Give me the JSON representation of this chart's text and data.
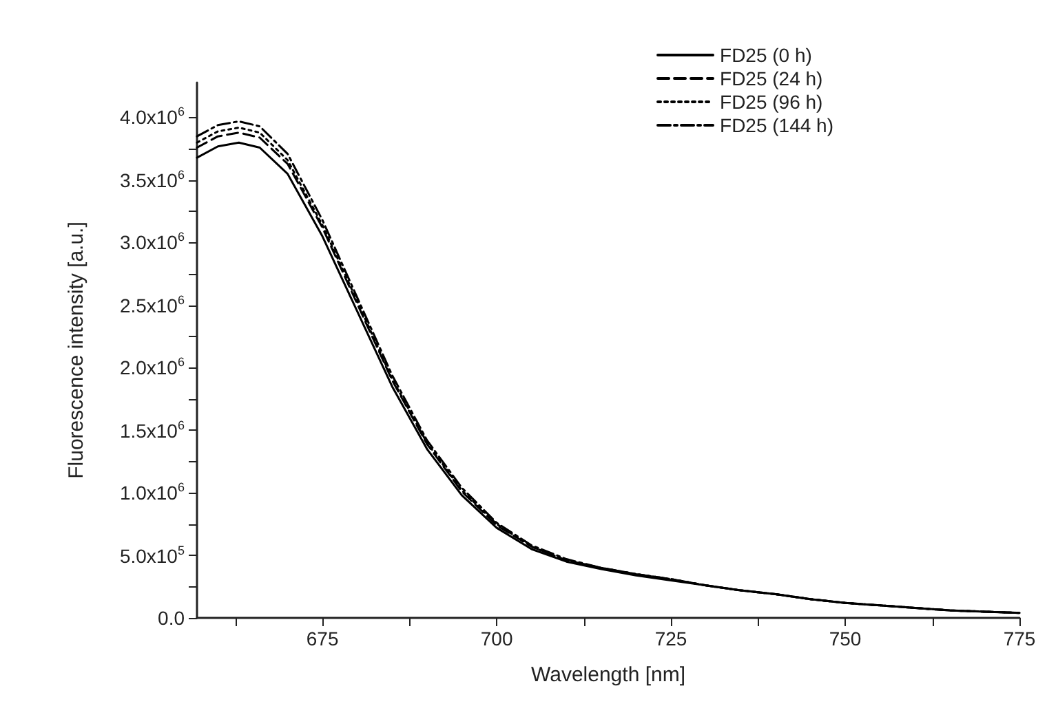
{
  "chart_data": {
    "type": "line",
    "xlabel": "Wavelength [nm]",
    "ylabel": "Fluorescence intensity [a.u.]",
    "x": [
      657,
      660,
      663,
      666,
      670,
      675,
      680,
      685,
      690,
      695,
      700,
      705,
      710,
      715,
      720,
      725,
      730,
      735,
      740,
      745,
      750,
      755,
      760,
      765,
      770,
      775
    ],
    "series": [
      {
        "name": "FD25 (0 h)",
        "color": "#000000",
        "line_style": "solid",
        "values": [
          3680000,
          3770000,
          3800000,
          3760000,
          3550000,
          3050000,
          2450000,
          1850000,
          1350000,
          980000,
          720000,
          550000,
          450000,
          390000,
          340000,
          300000,
          260000,
          220000,
          190000,
          150000,
          120000,
          100000,
          80000,
          60000,
          50000,
          40000
        ]
      },
      {
        "name": "FD25 (24 h)",
        "color": "#000000",
        "line_style": "dashed",
        "values": [
          3760000,
          3850000,
          3880000,
          3840000,
          3630000,
          3120000,
          2510000,
          1900000,
          1390000,
          1010000,
          740000,
          570000,
          460000,
          400000,
          350000,
          310000,
          260000,
          220000,
          190000,
          150000,
          120000,
          100000,
          80000,
          60000,
          50000,
          40000
        ]
      },
      {
        "name": "FD25 (96 h)",
        "color": "#000000",
        "line_style": "dotted",
        "values": [
          3800000,
          3890000,
          3920000,
          3880000,
          3660000,
          3140000,
          2530000,
          1910000,
          1400000,
          1020000,
          750000,
          570000,
          460000,
          400000,
          350000,
          310000,
          260000,
          220000,
          190000,
          150000,
          120000,
          100000,
          80000,
          60000,
          50000,
          40000
        ]
      },
      {
        "name": "FD25 (144 h)",
        "color": "#000000",
        "line_style": "dashdot",
        "values": [
          3850000,
          3940000,
          3970000,
          3930000,
          3710000,
          3180000,
          2560000,
          1940000,
          1420000,
          1040000,
          760000,
          580000,
          470000,
          400000,
          350000,
          310000,
          260000,
          220000,
          190000,
          150000,
          120000,
          100000,
          80000,
          60000,
          50000,
          40000
        ]
      }
    ],
    "xlim": [
      657,
      775
    ],
    "xticks": [
      {
        "value": 662.5,
        "label": null
      },
      675,
      {
        "value": 687.5,
        "label": null
      },
      700,
      {
        "value": 712.5,
        "label": null
      },
      725,
      {
        "value": 737.5,
        "label": null
      },
      750,
      {
        "value": 762.5,
        "label": null
      },
      775
    ],
    "ylim": [
      0,
      4280000
    ],
    "yticks": [
      {
        "value": 0,
        "label": "0.0"
      },
      {
        "value": 250000,
        "label": null
      },
      {
        "value": 500000,
        "label": "5.0x10$^{5}$"
      },
      {
        "value": 750000,
        "label": null
      },
      {
        "value": 1000000,
        "label": "1.0x10$^{6}$"
      },
      {
        "value": 1250000,
        "label": null
      },
      {
        "value": 1500000,
        "label": "1.5x10$^{6}$"
      },
      {
        "value": 1750000,
        "label": null
      },
      {
        "value": 2000000,
        "label": "2.0x10$^{6}$"
      },
      {
        "value": 2250000,
        "label": null
      },
      {
        "value": 2500000,
        "label": "2.5x10$^{6}$"
      },
      {
        "value": 2750000,
        "label": null
      },
      {
        "value": 3000000,
        "label": "3.0x10$^{6}$"
      },
      {
        "value": 3250000,
        "label": null
      },
      {
        "value": 3500000,
        "label": "3.5x10$^{6}$"
      },
      {
        "value": 3750000,
        "label": null
      },
      {
        "value": 4000000,
        "label": "4.0x10$^{6}$"
      }
    ],
    "grid": false,
    "legend": "top right",
    "marker": "none"
  }
}
